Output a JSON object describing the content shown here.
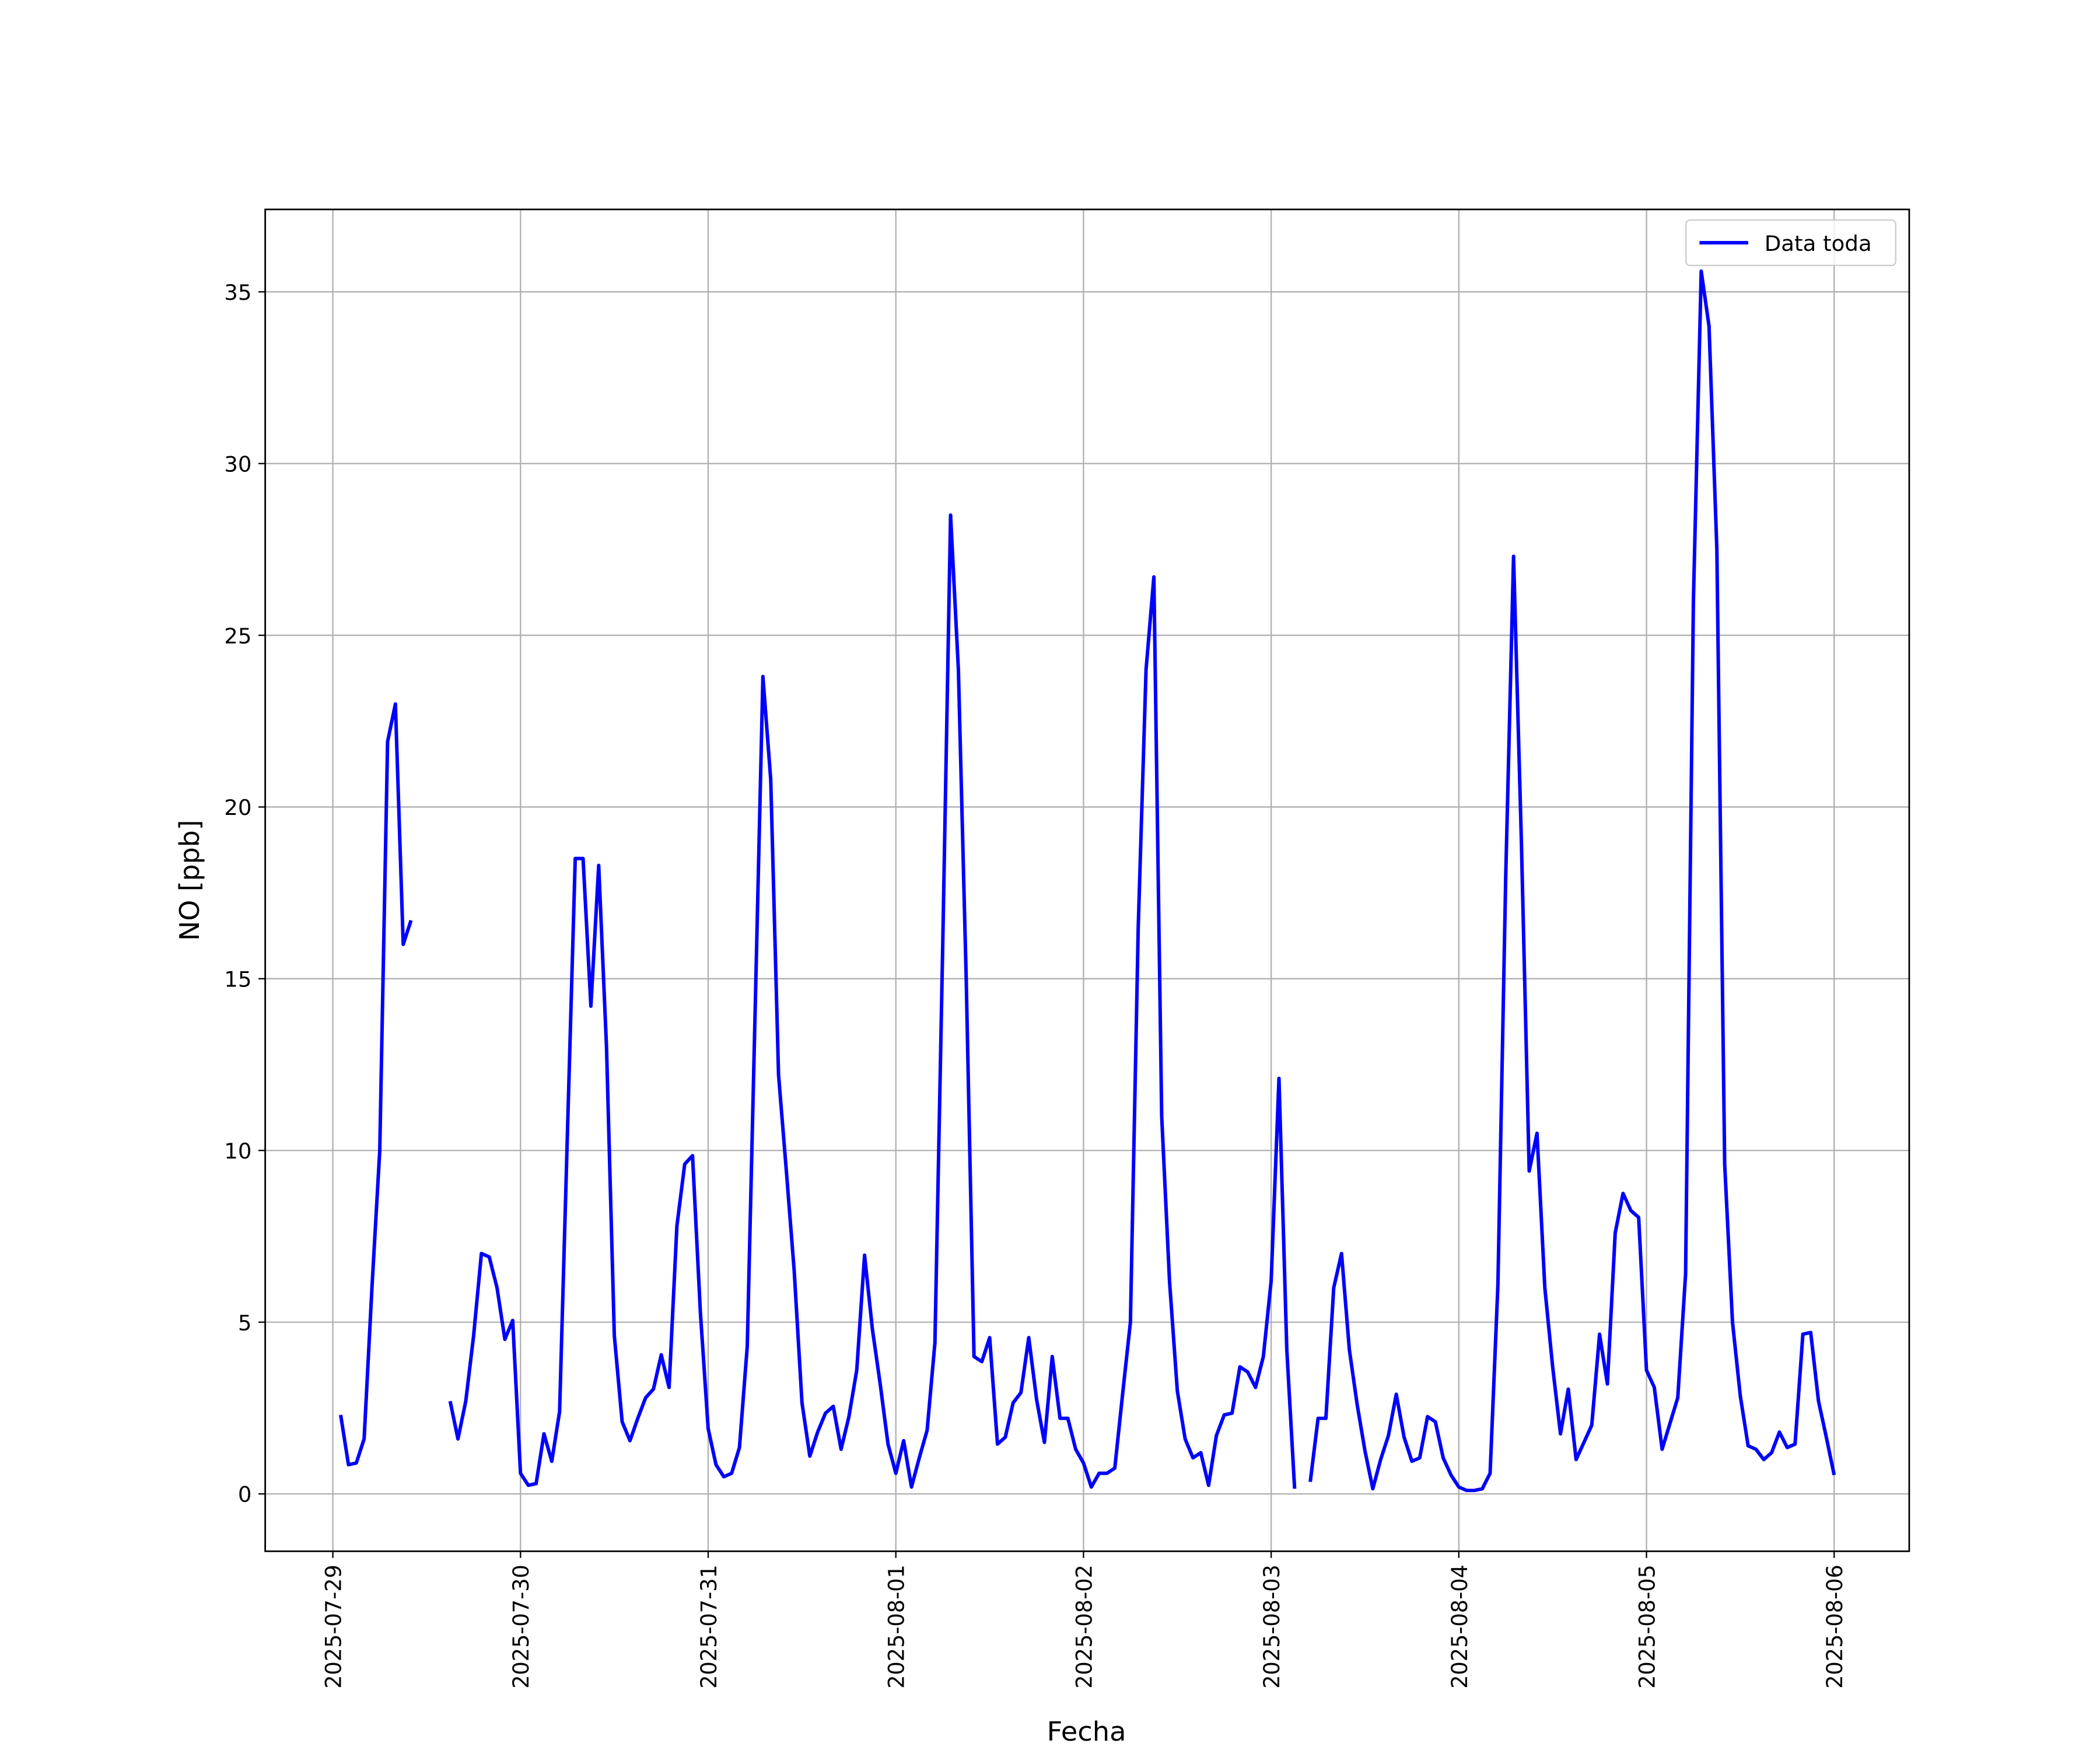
{
  "chart_data": {
    "type": "line",
    "xlabel": "Fecha",
    "ylabel": "NO [ppb]",
    "xlim": [
      -8.65,
      201.6
    ],
    "xticks": [
      {
        "value": 0,
        "label": "2025-07-29"
      },
      {
        "value": 24,
        "label": "2025-07-30"
      },
      {
        "value": 48,
        "label": "2025-07-31"
      },
      {
        "value": 72,
        "label": "2025-08-01"
      },
      {
        "value": 96,
        "label": "2025-08-02"
      },
      {
        "value": 120,
        "label": "2025-08-03"
      },
      {
        "value": 144,
        "label": "2025-08-04"
      },
      {
        "value": 168,
        "label": "2025-08-05"
      },
      {
        "value": 192,
        "label": "2025-08-06"
      }
    ],
    "ylim": [
      -1.67,
      37.4
    ],
    "yticks": [
      0,
      5,
      10,
      15,
      20,
      25,
      30,
      35
    ],
    "grid": true,
    "legend": "upper right",
    "x": [
      1,
      2,
      3,
      4,
      5,
      6,
      7,
      8,
      9,
      10,
      11,
      12,
      13,
      14,
      15,
      16,
      17,
      18,
      19,
      20,
      21,
      22,
      23,
      24,
      25,
      26,
      27,
      28,
      29,
      30,
      31,
      32,
      33,
      34,
      35,
      36,
      37,
      38,
      39,
      40,
      41,
      42,
      43,
      44,
      45,
      46,
      47,
      48,
      49,
      50,
      51,
      52,
      53,
      54,
      55,
      56,
      57,
      58,
      59,
      60,
      61,
      62,
      63,
      64,
      65,
      66,
      67,
      68,
      69,
      70,
      71,
      72,
      73,
      74,
      75,
      76,
      77,
      78,
      79,
      80,
      81,
      82,
      83,
      84,
      85,
      86,
      87,
      88,
      89,
      90,
      91,
      92,
      93,
      94,
      95,
      96,
      97,
      98,
      99,
      100,
      101,
      102,
      103,
      104,
      105,
      106,
      107,
      108,
      109,
      110,
      111,
      112,
      113,
      114,
      115,
      116,
      117,
      118,
      119,
      120,
      121,
      122,
      123,
      124,
      125,
      126,
      127,
      128,
      129,
      130,
      131,
      132,
      133,
      134,
      135,
      136,
      137,
      138,
      139,
      140,
      141,
      142,
      143,
      144,
      145,
      146,
      147,
      148,
      149,
      150,
      151,
      152,
      153,
      154,
      155,
      156,
      157,
      158,
      159,
      160,
      161,
      162,
      163,
      164,
      165,
      166,
      167,
      168,
      169,
      170,
      171,
      172,
      173,
      174,
      175,
      176,
      177,
      178,
      179,
      180,
      181,
      182,
      183,
      184,
      185,
      186,
      187,
      188,
      189,
      190,
      191,
      192
    ],
    "series": [
      {
        "name": "Data toda",
        "color": "#0000ff",
        "values": [
          2.3,
          0.85,
          0.9,
          1.6,
          6,
          10,
          21.9,
          23,
          16,
          16.7,
          null,
          null,
          null,
          null,
          2.7,
          1.6,
          2.7,
          4.6,
          7.0,
          6.9,
          6.0,
          4.5,
          5.05,
          0.6,
          0.25,
          0.3,
          1.75,
          0.95,
          2.4,
          10.5,
          18.5,
          18.5,
          14.2,
          18.3,
          13,
          4.6,
          2.1,
          1.55,
          2.2,
          2.8,
          3.05,
          4.05,
          3.1,
          7.8,
          9.6,
          9.85,
          5.3,
          1.9,
          0.85,
          0.5,
          0.6,
          1.35,
          4.3,
          14,
          23.8,
          20.8,
          12.2,
          9.4,
          6.5,
          2.65,
          1.1,
          1.8,
          2.35,
          2.55,
          1.3,
          2.25,
          3.6,
          6.95,
          4.8,
          3.2,
          1.45,
          0.6,
          1.55,
          0.2,
          1.05,
          1.85,
          4.4,
          16,
          28.5,
          24,
          15,
          4.0,
          3.85,
          4.55,
          1.45,
          1.65,
          2.65,
          2.95,
          4.55,
          2.75,
          1.5,
          4.0,
          2.2,
          2.2,
          1.3,
          0.9,
          0.2,
          0.6,
          0.6,
          0.75,
          2.9,
          5.0,
          16.5,
          24,
          26.7,
          11,
          6.2,
          3.0,
          1.6,
          1.05,
          1.2,
          0.25,
          1.7,
          2.3,
          2.35,
          3.7,
          3.55,
          3.1,
          4.0,
          6.2,
          12.1,
          4.2,
          0.15,
          null,
          0.35,
          2.2,
          2.2,
          6.0,
          7.0,
          4.2,
          2.6,
          1.25,
          0.15,
          1.0,
          1.7,
          2.9,
          1.65,
          0.95,
          1.05,
          2.25,
          2.1,
          1.05,
          0.55,
          0.2,
          0.1,
          0.1,
          0.15,
          0.6,
          6.1,
          18,
          27.3,
          19,
          9.4,
          10.5,
          6.0,
          3.7,
          1.75,
          3.05,
          1.0,
          1.5,
          2.0,
          4.65,
          3.2,
          7.6,
          8.75,
          8.25,
          8.05,
          3.6,
          3.1,
          1.3,
          2.05,
          2.8,
          6.4,
          26,
          35.6,
          34,
          27.5,
          9.6,
          5.0,
          2.85,
          1.4,
          1.3,
          1.0,
          1.2,
          1.8,
          1.35,
          1.45,
          4.65,
          4.7,
          2.7,
          1.65,
          0.55
        ]
      }
    ]
  }
}
